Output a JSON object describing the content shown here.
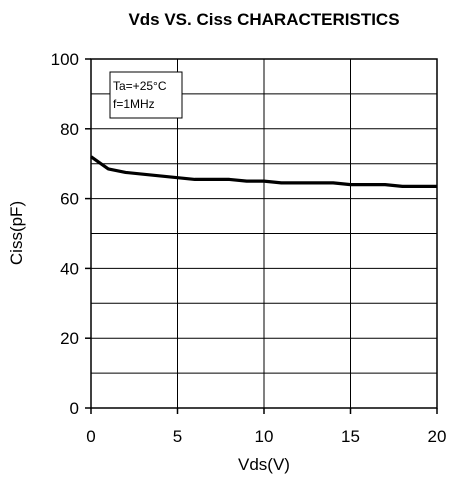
{
  "chart_data": {
    "type": "line",
    "title": "Vds  VS. Ciss CHARACTERISTICS",
    "xlabel": "Vds(V)",
    "ylabel": "Ciss(pF)",
    "xlim": [
      0,
      20
    ],
    "ylim": [
      0,
      100
    ],
    "x_ticks": [
      0,
      5,
      10,
      15,
      20
    ],
    "y_ticks": [
      0,
      20,
      40,
      60,
      80,
      100
    ],
    "grid": true,
    "annotation": [
      "Ta=+25°C",
      "f=1MHz"
    ],
    "series": [
      {
        "x": [
          0,
          1,
          2,
          3,
          4,
          5,
          6,
          7,
          8,
          9,
          10,
          11,
          12,
          13,
          14,
          15,
          16,
          17,
          18,
          19,
          20
        ],
        "y": [
          72,
          68.5,
          67.5,
          67,
          66.5,
          66,
          65.5,
          65.5,
          65.5,
          65,
          65,
          64.5,
          64.5,
          64.5,
          64.5,
          64,
          64,
          64,
          63.5,
          63.5,
          63.5
        ]
      }
    ]
  }
}
